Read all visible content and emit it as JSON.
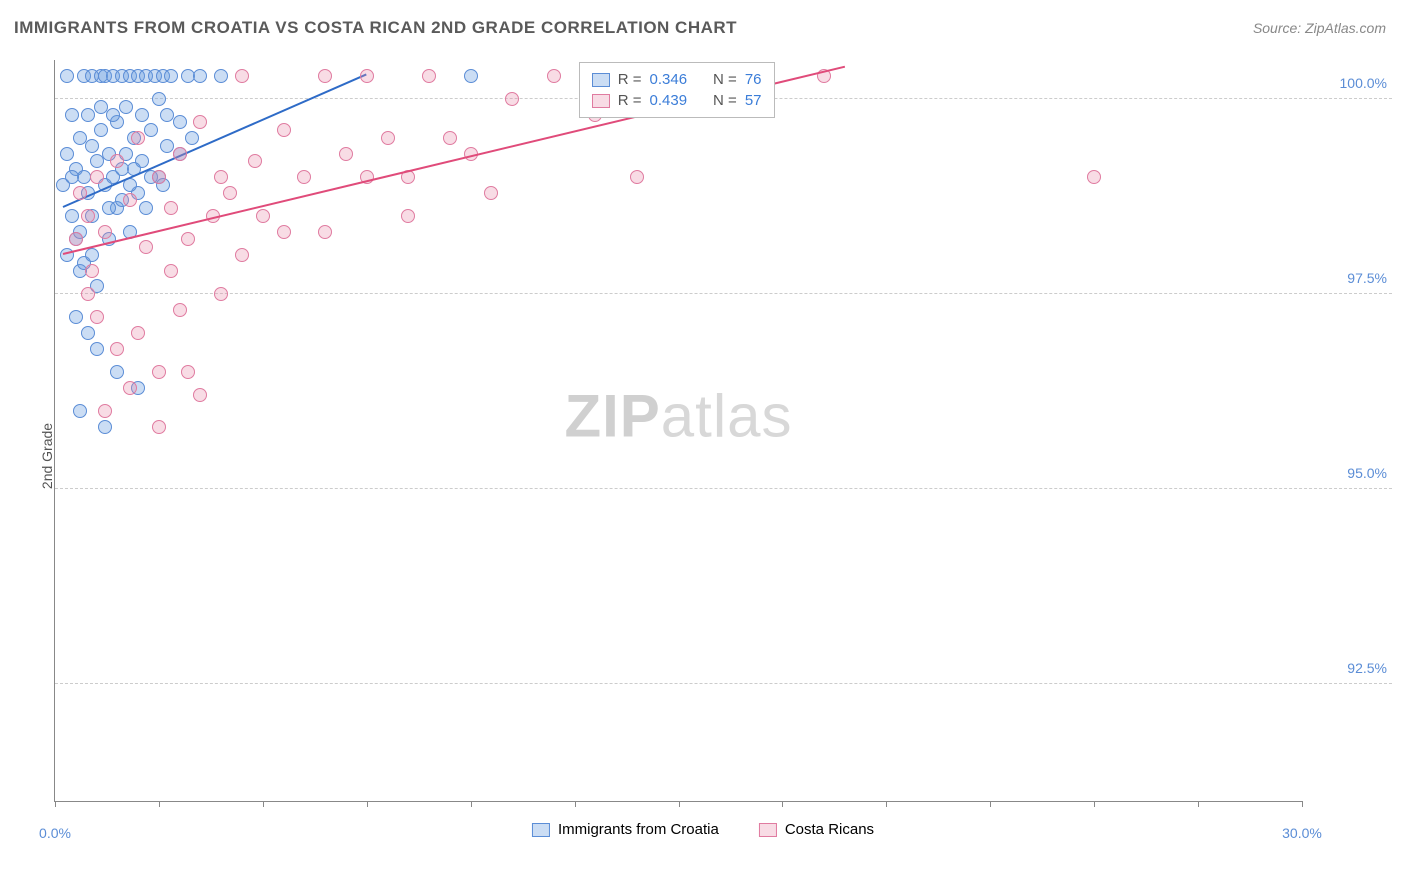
{
  "title": "IMMIGRANTS FROM CROATIA VS COSTA RICAN 2ND GRADE CORRELATION CHART",
  "source": "Source: ZipAtlas.com",
  "ylabel": "2nd Grade",
  "watermark_a": "ZIP",
  "watermark_b": "atlas",
  "chart": {
    "type": "scatter",
    "xlim": [
      0,
      30
    ],
    "ylim": [
      91,
      100.5
    ],
    "xticks": [
      0,
      2.5,
      5,
      7.5,
      10,
      12.5,
      15,
      17.5,
      20,
      22.5,
      25,
      27.5,
      30
    ],
    "xtick_labels": {
      "0": "0.0%",
      "30": "30.0%"
    },
    "yticks": [
      92.5,
      95.0,
      97.5,
      100.0
    ],
    "ytick_labels": [
      "92.5%",
      "95.0%",
      "97.5%",
      "100.0%"
    ],
    "grid_color": "#d5d5d5",
    "background": "#ffffff",
    "series": [
      {
        "name": "Immigrants from Croatia",
        "color_fill": "rgba(107,159,224,0.35)",
        "color_stroke": "#5b8dd6",
        "line_color": "#2e6bc7",
        "r": 0.346,
        "n": 76,
        "trend": {
          "x1": 0.2,
          "y1": 98.6,
          "x2": 7.5,
          "y2": 100.3
        },
        "points": [
          [
            0.3,
            98.0
          ],
          [
            0.4,
            98.5
          ],
          [
            0.5,
            99.1
          ],
          [
            0.5,
            98.2
          ],
          [
            0.6,
            99.5
          ],
          [
            0.6,
            97.8
          ],
          [
            0.7,
            100.3
          ],
          [
            0.7,
            99.0
          ],
          [
            0.8,
            98.8
          ],
          [
            0.8,
            99.8
          ],
          [
            0.9,
            100.3
          ],
          [
            0.9,
            98.5
          ],
          [
            1.0,
            99.2
          ],
          [
            1.0,
            97.6
          ],
          [
            1.1,
            100.3
          ],
          [
            1.1,
            99.6
          ],
          [
            1.2,
            98.9
          ],
          [
            1.2,
            100.3
          ],
          [
            1.3,
            99.3
          ],
          [
            1.3,
            98.2
          ],
          [
            1.4,
            100.3
          ],
          [
            1.4,
            99.0
          ],
          [
            1.5,
            99.7
          ],
          [
            1.5,
            98.6
          ],
          [
            1.6,
            100.3
          ],
          [
            1.6,
            99.1
          ],
          [
            1.7,
            99.9
          ],
          [
            1.8,
            100.3
          ],
          [
            1.8,
            98.3
          ],
          [
            1.9,
            99.5
          ],
          [
            2.0,
            100.3
          ],
          [
            2.0,
            98.8
          ],
          [
            2.1,
            99.2
          ],
          [
            2.2,
            100.3
          ],
          [
            2.3,
            99.6
          ],
          [
            2.4,
            100.3
          ],
          [
            2.5,
            99.0
          ],
          [
            2.6,
            100.3
          ],
          [
            2.7,
            99.4
          ],
          [
            2.8,
            100.3
          ],
          [
            3.0,
            99.7
          ],
          [
            3.2,
            100.3
          ],
          [
            0.5,
            97.2
          ],
          [
            0.8,
            97.0
          ],
          [
            1.0,
            96.8
          ],
          [
            1.5,
            96.5
          ],
          [
            2.0,
            96.3
          ],
          [
            0.6,
            96.0
          ],
          [
            1.2,
            95.8
          ],
          [
            0.7,
            97.9
          ],
          [
            0.4,
            99.8
          ],
          [
            0.3,
            100.3
          ],
          [
            1.1,
            99.9
          ],
          [
            1.7,
            99.3
          ],
          [
            2.1,
            99.8
          ],
          [
            2.5,
            100.0
          ],
          [
            1.9,
            99.1
          ],
          [
            0.9,
            99.4
          ],
          [
            1.4,
            99.8
          ],
          [
            1.6,
            98.7
          ],
          [
            2.3,
            99.0
          ],
          [
            2.7,
            99.8
          ],
          [
            3.0,
            99.3
          ],
          [
            3.5,
            100.3
          ],
          [
            4.0,
            100.3
          ],
          [
            0.2,
            98.9
          ],
          [
            0.3,
            99.3
          ],
          [
            0.4,
            99.0
          ],
          [
            0.6,
            98.3
          ],
          [
            0.9,
            98.0
          ],
          [
            1.3,
            98.6
          ],
          [
            1.8,
            98.9
          ],
          [
            2.2,
            98.6
          ],
          [
            2.6,
            98.9
          ],
          [
            3.3,
            99.5
          ],
          [
            10.0,
            100.3
          ]
        ]
      },
      {
        "name": "Costa Ricans",
        "color_fill": "rgba(232,140,170,0.30)",
        "color_stroke": "#e07ba0",
        "line_color": "#e04b7a",
        "r": 0.439,
        "n": 57,
        "trend": {
          "x1": 0.2,
          "y1": 98.0,
          "x2": 19.0,
          "y2": 100.4
        },
        "points": [
          [
            0.5,
            98.2
          ],
          [
            0.8,
            98.5
          ],
          [
            1.0,
            99.0
          ],
          [
            1.2,
            98.3
          ],
          [
            1.5,
            99.2
          ],
          [
            1.8,
            98.7
          ],
          [
            2.0,
            99.5
          ],
          [
            2.2,
            98.1
          ],
          [
            2.5,
            99.0
          ],
          [
            2.8,
            98.6
          ],
          [
            3.0,
            99.3
          ],
          [
            3.2,
            98.2
          ],
          [
            3.5,
            99.7
          ],
          [
            3.8,
            98.5
          ],
          [
            4.0,
            99.0
          ],
          [
            4.2,
            98.8
          ],
          [
            4.5,
            100.3
          ],
          [
            4.8,
            99.2
          ],
          [
            5.0,
            98.5
          ],
          [
            5.5,
            99.6
          ],
          [
            6.0,
            99.0
          ],
          [
            6.5,
            100.3
          ],
          [
            7.0,
            99.3
          ],
          [
            7.5,
            100.3
          ],
          [
            8.0,
            99.5
          ],
          [
            8.5,
            99.0
          ],
          [
            9.0,
            100.3
          ],
          [
            10.0,
            99.3
          ],
          [
            10.5,
            98.8
          ],
          [
            11.0,
            100.0
          ],
          [
            12.0,
            100.3
          ],
          [
            14.0,
            99.0
          ],
          [
            16.0,
            100.3
          ],
          [
            18.5,
            100.3
          ],
          [
            25.0,
            99.0
          ],
          [
            1.0,
            97.2
          ],
          [
            1.5,
            96.8
          ],
          [
            2.0,
            97.0
          ],
          [
            2.5,
            96.5
          ],
          [
            3.0,
            97.3
          ],
          [
            3.5,
            96.2
          ],
          [
            1.2,
            96.0
          ],
          [
            0.8,
            97.5
          ],
          [
            2.8,
            97.8
          ],
          [
            4.0,
            97.5
          ],
          [
            0.6,
            98.8
          ],
          [
            6.5,
            98.3
          ],
          [
            7.5,
            99.0
          ],
          [
            8.5,
            98.5
          ],
          [
            9.5,
            99.5
          ],
          [
            13.0,
            99.8
          ],
          [
            1.8,
            96.3
          ],
          [
            2.5,
            95.8
          ],
          [
            3.2,
            96.5
          ],
          [
            0.9,
            97.8
          ],
          [
            4.5,
            98.0
          ],
          [
            5.5,
            98.3
          ]
        ]
      }
    ]
  },
  "legend_r": {
    "row1": {
      "r_label": "R =",
      "r_val": "0.346",
      "n_label": "N =",
      "n_val": "76"
    },
    "row2": {
      "r_label": "R =",
      "r_val": "0.439",
      "n_label": "N =",
      "n_val": "57"
    }
  },
  "legend_bottom": {
    "s1": "Immigrants from Croatia",
    "s2": "Costa Ricans"
  }
}
